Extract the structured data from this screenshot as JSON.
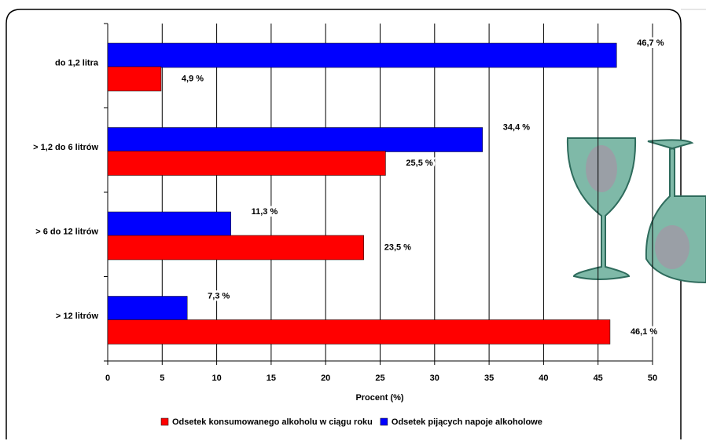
{
  "chart_data": {
    "type": "bar",
    "orientation": "horizontal",
    "x_label": "Procent (%)",
    "categories": [
      "do 1,2 litra",
      "> 1,2 do 6 litrów",
      "> 6  do 12 litrów",
      "> 12 litrów"
    ],
    "series": [
      {
        "name": "Odsetek konsumowanego alkoholu w ciągu roku",
        "color": "#ff0000",
        "values": [
          4.9,
          25.5,
          23.5,
          46.1
        ],
        "value_labels": [
          "4,9 %",
          "25,5 %",
          "23,5 %",
          "46,1 %"
        ]
      },
      {
        "name": "Odsetek pijących napoje alkoholowe",
        "color": "#0000ff",
        "values": [
          46.7,
          34.4,
          11.3,
          7.3
        ],
        "value_labels": [
          "46,7 %",
          "34,4 %",
          "11,3 %",
          "7,3 %"
        ]
      }
    ],
    "xlim": [
      0,
      50
    ],
    "xticks": [
      0,
      5,
      10,
      15,
      20,
      25,
      30,
      35,
      40,
      45,
      50
    ],
    "grid": true
  }
}
